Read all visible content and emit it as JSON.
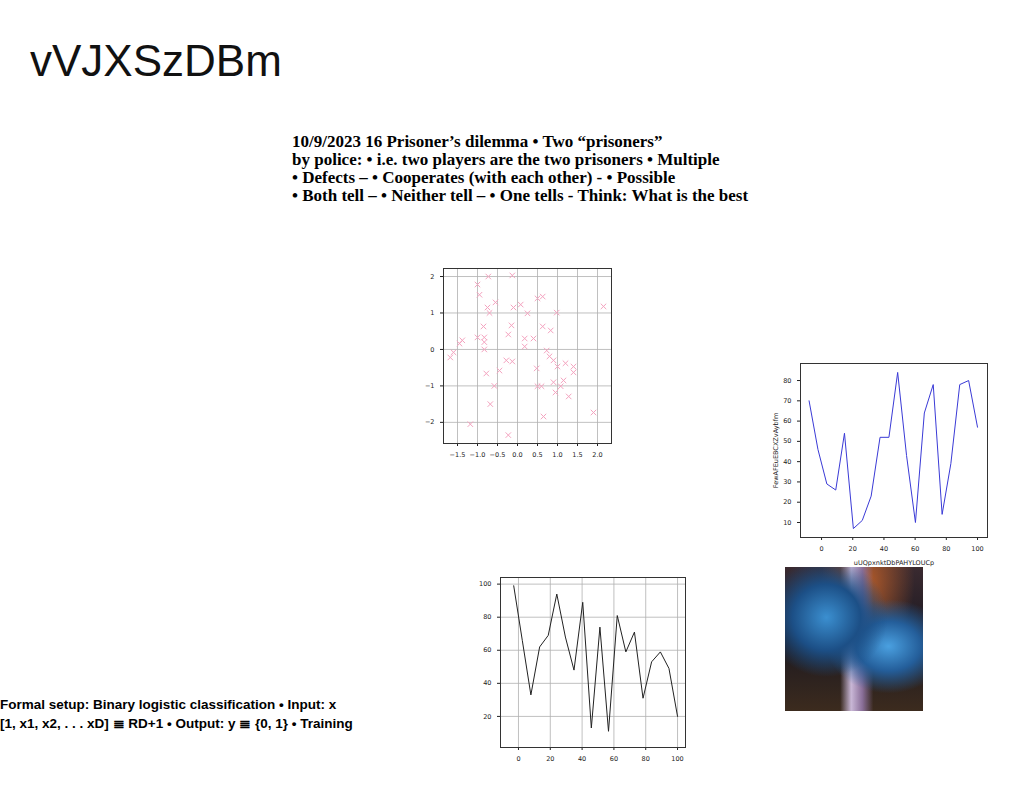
{
  "title": "vVJXSzDBm",
  "body_text": [
    "10/9/2023 16 Prisoner’s dilemma • Two “prisoners”",
    "by police: • i.e. two players are the two prisoners • Multiple",
    "• Defects – • Cooperates (with each other) - • Possible",
    "• Both tell – • Neither tell – • One tells - Think: What is the best"
  ],
  "footer_text": [
    "Formal setup: Binary logistic classification • Input: x",
    "[1, x1, x2, . . . xD] ≣ RD+1 • Output: y ≣ {0, 1} • Training"
  ],
  "chart_data": [
    {
      "type": "scatter",
      "color": "#f4a3bf",
      "marker": "x",
      "grid": true,
      "x": [
        -1.68,
        -1.6,
        -1.45,
        -1.38,
        -1.18,
        -1.0,
        -0.95,
        -1.0,
        -0.85,
        -0.83,
        -0.83,
        -0.83,
        -0.73,
        -0.75,
        -0.7,
        -0.78,
        -0.68,
        -0.58,
        -0.55,
        -0.45,
        -0.28,
        -0.23,
        -0.15,
        -0.23,
        -0.13,
        -0.1,
        -0.13,
        0.08,
        0.18,
        0.18,
        0.25,
        0.4,
        0.5,
        0.63,
        0.48,
        0.5,
        0.6,
        0.63,
        0.65,
        0.73,
        0.8,
        0.83,
        0.9,
        0.9,
        0.95,
        0.98,
        1.0,
        1.08,
        1.15,
        1.2,
        1.28,
        1.4,
        1.4,
        1.9,
        2.15
      ],
      "values": [
        -0.22,
        -0.08,
        0.16,
        0.25,
        -2.05,
        1.78,
        1.5,
        0.33,
        0.63,
        0.33,
        0.2,
        0.0,
        2.0,
        1.15,
        1.0,
        -0.66,
        -1.5,
        -1.0,
        1.29,
        -0.58,
        -0.3,
        0.41,
        0.66,
        -2.35,
        2.03,
        1.15,
        -0.33,
        1.23,
        0.3,
        0.08,
        0.99,
        0.3,
        1.4,
        1.45,
        -0.52,
        -1.01,
        -1.01,
        0.63,
        -1.84,
        -0.03,
        -0.19,
        0.52,
        -0.3,
        -0.9,
        -1.18,
        1.01,
        -0.47,
        -1.01,
        -0.85,
        -0.38,
        -1.29,
        -0.47,
        -0.63,
        -1.73,
        1.18
      ],
      "xlim": [
        -1.85,
        2.35
      ],
      "xticks": [
        {
          "value": -1.5,
          "label": "−1.5"
        },
        {
          "value": -1,
          "label": "−1.0"
        },
        {
          "value": -0.5,
          "label": "−0.5"
        },
        {
          "value": 0,
          "label": "0.0"
        },
        {
          "value": 0.5,
          "label": "0.5"
        },
        {
          "value": 1,
          "label": "1.0"
        },
        {
          "value": 1.5,
          "label": "1.5"
        },
        {
          "value": 2,
          "label": "2.0"
        }
      ],
      "ylim": [
        -2.58,
        2.22
      ],
      "yticks": [
        {
          "value": -2,
          "label": "−2"
        },
        {
          "value": -1,
          "label": "−1"
        },
        0,
        1,
        2
      ]
    },
    {
      "type": "line",
      "color": "#3a3ad6",
      "grid": false,
      "x_label": "uUQpxnktDbPAHYLOUCp",
      "y_label": "FewAFEuEBCXZvAybfm",
      "x": [
        -8,
        -2.3,
        3.4,
        9.1,
        14.7,
        20.4,
        26.1,
        31.8,
        37.5,
        43.2,
        48.8,
        54.5,
        60.2,
        65.9,
        71.6,
        77.3,
        82.9,
        88.6,
        94.3,
        100
      ],
      "values": [
        70,
        46,
        29,
        26,
        54,
        7,
        11,
        23,
        52,
        52,
        84,
        43,
        10,
        64,
        78,
        14,
        39,
        78,
        80,
        57
      ],
      "xlim": [
        -13.5,
        106.4
      ],
      "xticks": [
        0,
        20,
        40,
        60,
        80,
        100
      ],
      "ylim": [
        2.6,
        88.4
      ],
      "yticks": [
        10,
        20,
        30,
        40,
        50,
        60,
        70,
        80
      ]
    },
    {
      "type": "line",
      "color": "#222222",
      "grid": true,
      "x": [
        -3,
        2.4,
        7.8,
        13.3,
        18.7,
        24.1,
        29.5,
        34.9,
        40.4,
        45.8,
        51.2,
        56.6,
        62.1,
        67.5,
        72.9,
        78.3,
        83.7,
        89.2,
        94.6,
        100
      ],
      "values": [
        99,
        66,
        33,
        62,
        69,
        94,
        68,
        48,
        89,
        13,
        74,
        11,
        81,
        59,
        71,
        31,
        53,
        59,
        49,
        20
      ],
      "xlim": [
        -11.3,
        105
      ],
      "xticks": [
        0,
        20,
        40,
        60,
        80,
        100
      ],
      "ylim": [
        1.2,
        104
      ],
      "yticks": [
        20,
        40,
        60,
        80,
        100
      ]
    }
  ]
}
